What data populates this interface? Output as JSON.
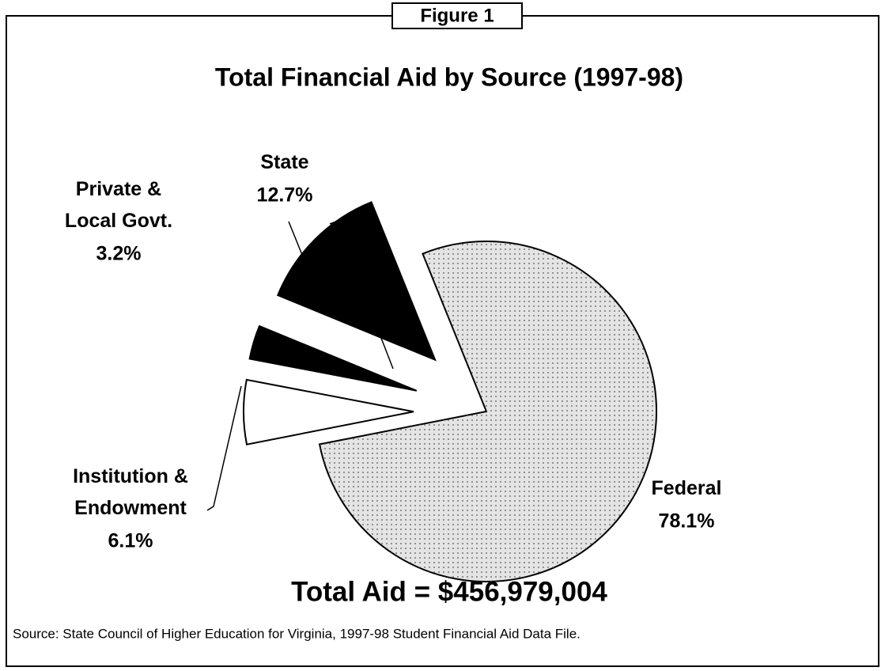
{
  "chart_data": {
    "type": "pie",
    "figure_label": "Figure 1",
    "title": "Total Financial Aid by Source (1997-98)",
    "categories": [
      "Federal",
      "Institution & Endowment",
      "Private & Local Govt.",
      "State"
    ],
    "values": [
      78.1,
      6.1,
      3.2,
      12.7
    ],
    "value_labels": [
      "78.1%",
      "6.1%",
      "3.2%",
      "12.7%"
    ],
    "colors": [
      "#e4e4e4",
      "#ffffff",
      "#000000",
      "#000000"
    ],
    "annotation": "Total Aid  =  $456,979,004",
    "source": "Source:  State Council of Higher Education for Virginia, 1997-98 Student Financial Aid Data File."
  }
}
